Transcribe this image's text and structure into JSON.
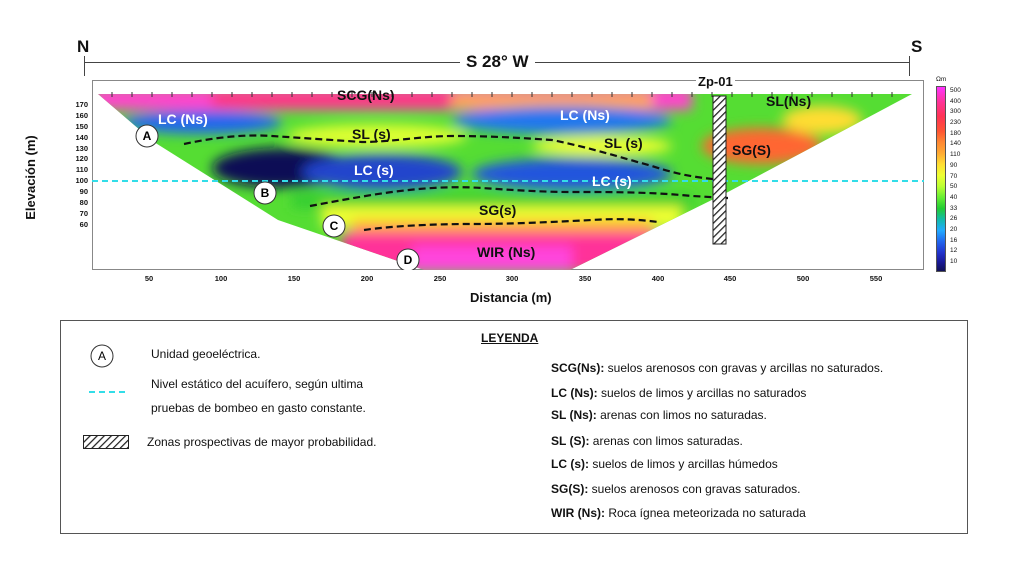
{
  "section": {
    "north": "N",
    "south": "S",
    "bearing": "S 28° W",
    "well_label": "Zp-01",
    "y_axis_title": "Elevación (m)",
    "x_axis_title": "Distancia (m)",
    "y_ticks": [
      "170",
      "160",
      "150",
      "140",
      "130",
      "120",
      "110",
      "100",
      "90",
      "80",
      "70",
      "60"
    ],
    "x_ticks": [
      "50",
      "100",
      "150",
      "200",
      "250",
      "300",
      "350",
      "400",
      "450",
      "500",
      "550"
    ],
    "scale_unit": "Ωm",
    "scale_values": [
      "500",
      "400",
      "300",
      "230",
      "180",
      "140",
      "110",
      "90",
      "70",
      "50",
      "40",
      "33",
      "26",
      "20",
      "16",
      "12",
      "10"
    ],
    "unit_labels": {
      "scg": "SCG(Ns)",
      "sl_ns": "SL(Ns)",
      "lc_ns_left": "LC (Ns)",
      "lc_ns_right": "LC (Ns)",
      "sl_s_left": "SL (s)",
      "sl_s_right": "SL (s)",
      "sg_s": "SG(S)",
      "lc_s_left": "LC (s)",
      "lc_s_right": "LC (s)",
      "sg_s_lower": "SG(s)",
      "wir": "WIR (Ns)"
    },
    "markers": [
      "A",
      "B",
      "C",
      "D"
    ]
  },
  "legend": {
    "title": "LEYENDA",
    "marker_sample": "A",
    "marker_text": "Unidad geoeléctrica.",
    "water_text_line1": "Nivel estático del acuífero, según ultima",
    "water_text_line2": "pruebas de bombeo en gasto constante.",
    "hatch_text": "Zonas prospectivas de mayor probabilidad.",
    "items": [
      {
        "code": "SCG(Ns):",
        "desc": " suelos arenosos con gravas y arcillas no saturados."
      },
      {
        "code": "LC (Ns):",
        "desc": " suelos de limos y arcillas no saturados"
      },
      {
        "code": "SL (Ns):",
        "desc": " arenas con limos no saturadas."
      },
      {
        "code": "SL (S):",
        "desc": " arenas con limos saturadas."
      },
      {
        "code": "LC (s):",
        "desc": " suelos de limos y arcillas húmedos"
      },
      {
        "code": "SG(S):",
        "desc": " suelos arenosos con gravas saturados."
      },
      {
        "code": "WIR (Ns):",
        "desc": " Roca ígnea meteorizada no saturada"
      }
    ]
  },
  "colors": {
    "water_line": "#33dde8",
    "scale": [
      "#ff33ff",
      "#ff3399",
      "#ff3355",
      "#ff5533",
      "#ff8833",
      "#ffaa33",
      "#ffdd33",
      "#eeff33",
      "#bbff33",
      "#66ee33",
      "#22cc33",
      "#11bbaa",
      "#22aaff",
      "#2266ee",
      "#2233cc",
      "#1a1a99",
      "#111155"
    ]
  }
}
